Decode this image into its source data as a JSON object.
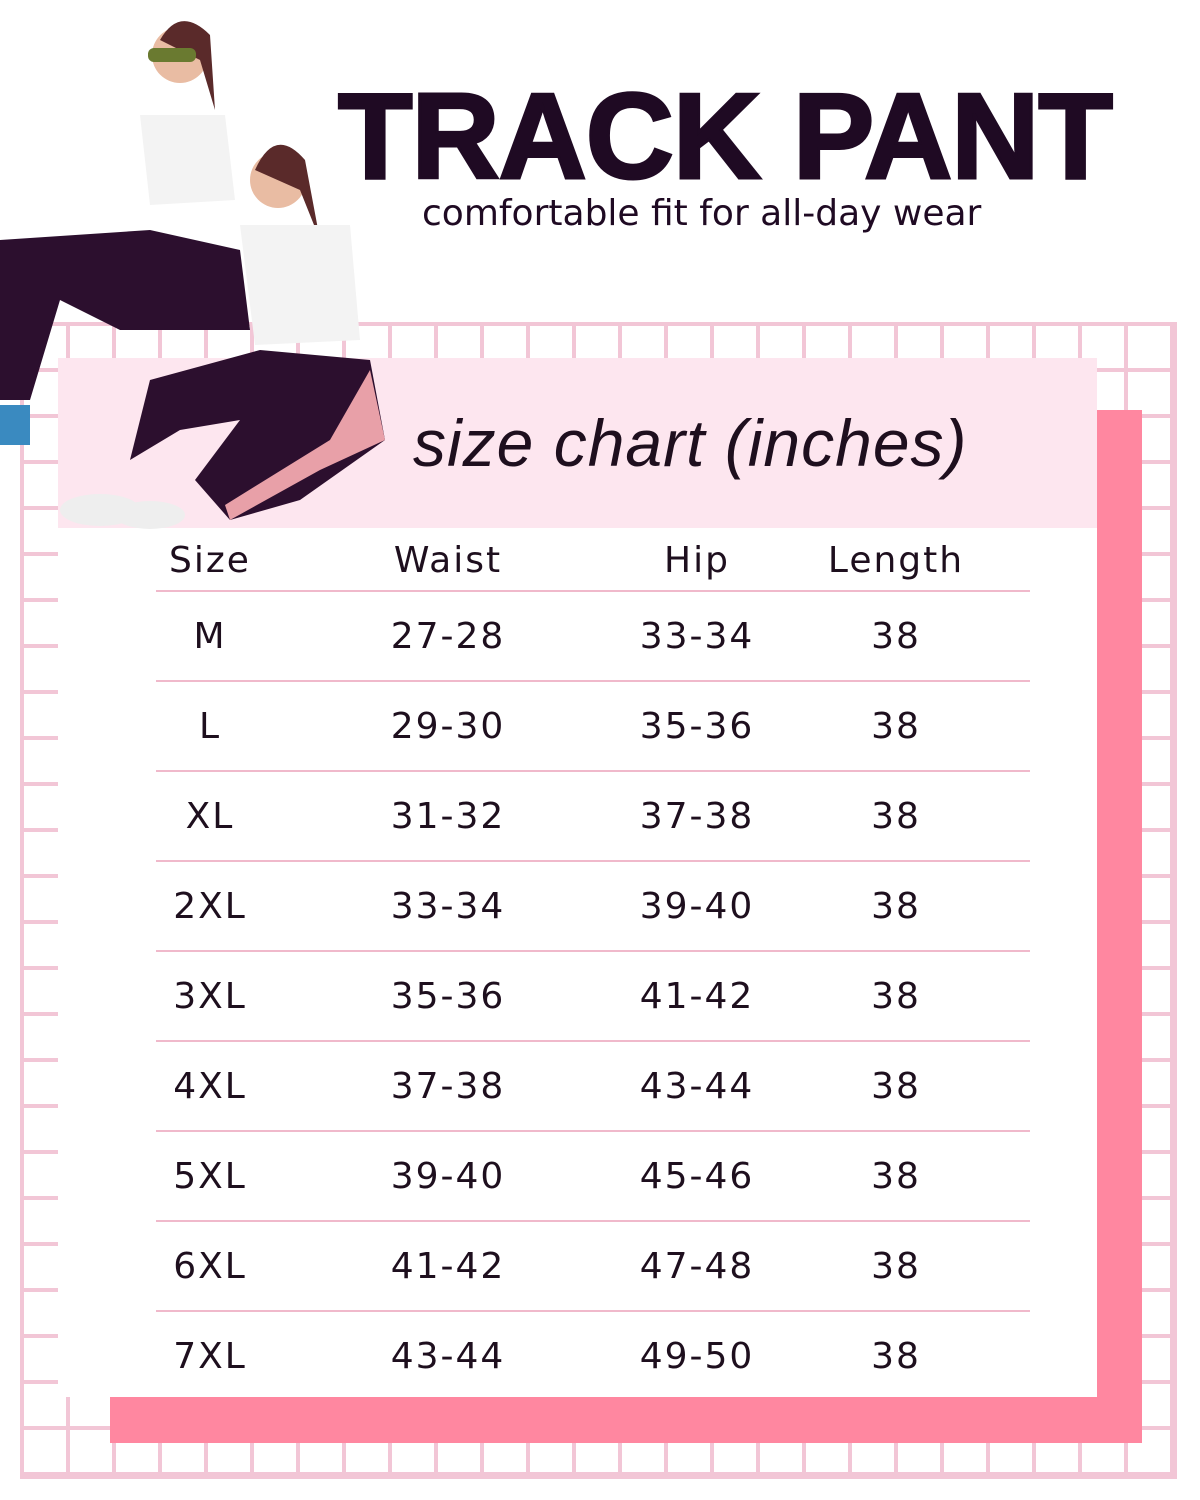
{
  "header": {
    "title": "TRACK PANT",
    "tagline": "comfortable fit for all-day wear"
  },
  "card": {
    "heading": "size chart (inches)"
  },
  "table": {
    "columns": [
      "Size",
      "Waist",
      "Hip",
      "Length"
    ],
    "rows": [
      [
        "M",
        "27-28",
        "33-34",
        "38"
      ],
      [
        "L",
        "29-30",
        "35-36",
        "38"
      ],
      [
        "XL",
        "31-32",
        "37-38",
        "38"
      ],
      [
        "2XL",
        "33-34",
        "39-40",
        "38"
      ],
      [
        "3XL",
        "35-36",
        "41-42",
        "38"
      ],
      [
        "4XL",
        "37-38",
        "43-44",
        "38"
      ],
      [
        "5XL",
        "39-40",
        "45-46",
        "38"
      ],
      [
        "6XL",
        "41-42",
        "47-48",
        "38"
      ],
      [
        "7XL",
        "43-44",
        "49-50",
        "38"
      ]
    ]
  },
  "colors": {
    "accent_pink": "#ff87a0",
    "grid_pink": "#f2c6d6",
    "band_pink": "#fde6ef",
    "text_dark": "#1f0a23"
  }
}
